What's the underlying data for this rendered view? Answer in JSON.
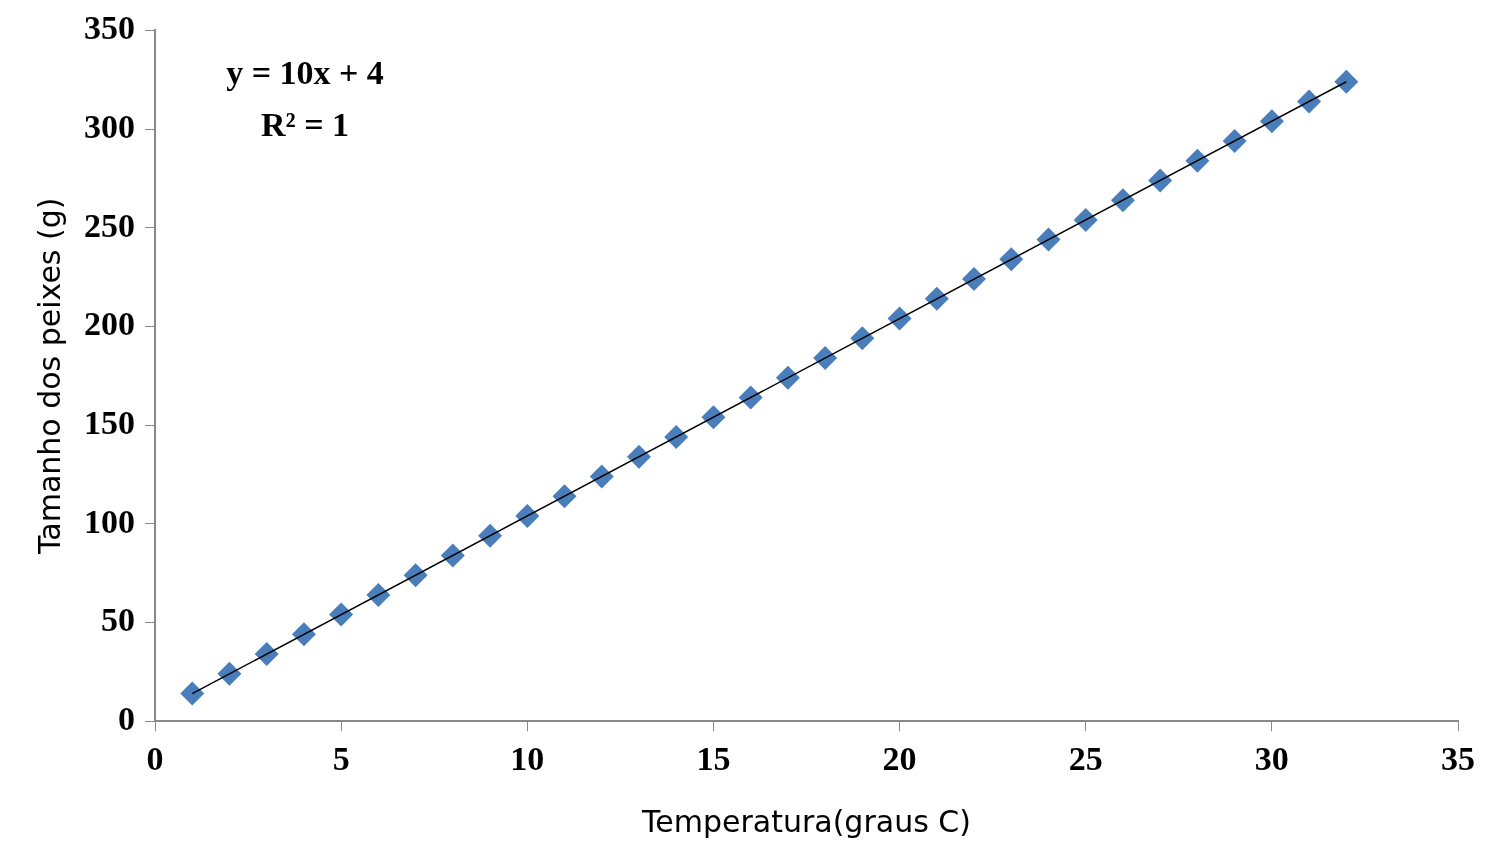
{
  "chart_data": {
    "type": "scatter",
    "xlabel": "Temperatura(graus C)",
    "ylabel": "Tamanho dos peixes (g)",
    "xlim": [
      0,
      35
    ],
    "xticks": [
      0,
      5,
      10,
      15,
      20,
      25,
      30,
      35
    ],
    "ylim": [
      0,
      350
    ],
    "yticks": [
      0,
      50,
      100,
      150,
      200,
      250,
      300,
      350
    ],
    "grid": false,
    "legend": false,
    "marker": "diamond",
    "annotations": [
      "y = 10x + 4",
      "R² = 1"
    ],
    "series": [
      {
        "type": "scatter",
        "color": "#4a7ebb",
        "x": [
          1,
          2,
          3,
          4,
          5,
          6,
          7,
          8,
          9,
          10,
          11,
          12,
          13,
          14,
          15,
          16,
          17,
          18,
          19,
          20,
          21,
          22,
          23,
          24,
          25,
          26,
          27,
          28,
          29,
          30,
          31,
          32
        ],
        "values": [
          14,
          24,
          34,
          44,
          54,
          64,
          74,
          84,
          94,
          104,
          114,
          124,
          134,
          144,
          154,
          164,
          174,
          184,
          194,
          204,
          214,
          224,
          234,
          244,
          254,
          264,
          274,
          284,
          294,
          304,
          314,
          324
        ]
      },
      {
        "type": "line",
        "color": "#000000",
        "line_style": "solid",
        "marker": "none",
        "x": [
          1,
          32
        ],
        "values": [
          14,
          324
        ]
      }
    ]
  }
}
